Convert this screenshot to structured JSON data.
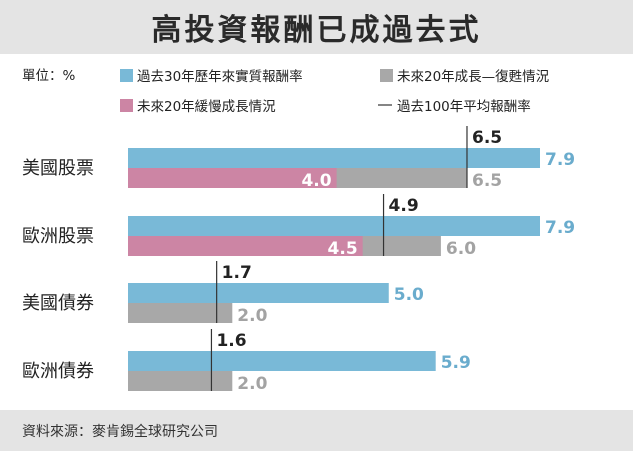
{
  "title": "高投資報酬已成過去式",
  "source": "資料來源：麥肯錫全球研究公司",
  "colors": {
    "blue": "#79b9d7",
    "gray": "#a8a8a8",
    "pink": "#cc85a4",
    "line": "#333333",
    "blue_text": "#6aaccd",
    "gray_text": "#a3a3a3",
    "dark_text": "#222222"
  },
  "chart_data": {
    "type": "bar",
    "orientation": "horizontal",
    "unit_label": "單位：%",
    "categories": [
      "美國股票",
      "歐洲股票",
      "美國債券",
      "歐洲債券"
    ],
    "series": [
      {
        "name": "過去30年歷年來實質報酬率",
        "values": [
          7.9,
          7.9,
          5.0,
          5.9
        ]
      },
      {
        "name": "未來20年成長—復甦情況",
        "values": [
          6.5,
          6.0,
          2.0,
          2.0
        ]
      },
      {
        "name": "未來20年緩慢成長情況",
        "values": [
          4.0,
          4.5,
          null,
          null
        ]
      },
      {
        "name": "過去100年平均報酬率",
        "values": [
          6.5,
          4.9,
          1.7,
          1.6
        ],
        "marker": "line"
      }
    ],
    "xlim": [
      0,
      7.9
    ],
    "grid": false,
    "legend_position": "top"
  }
}
